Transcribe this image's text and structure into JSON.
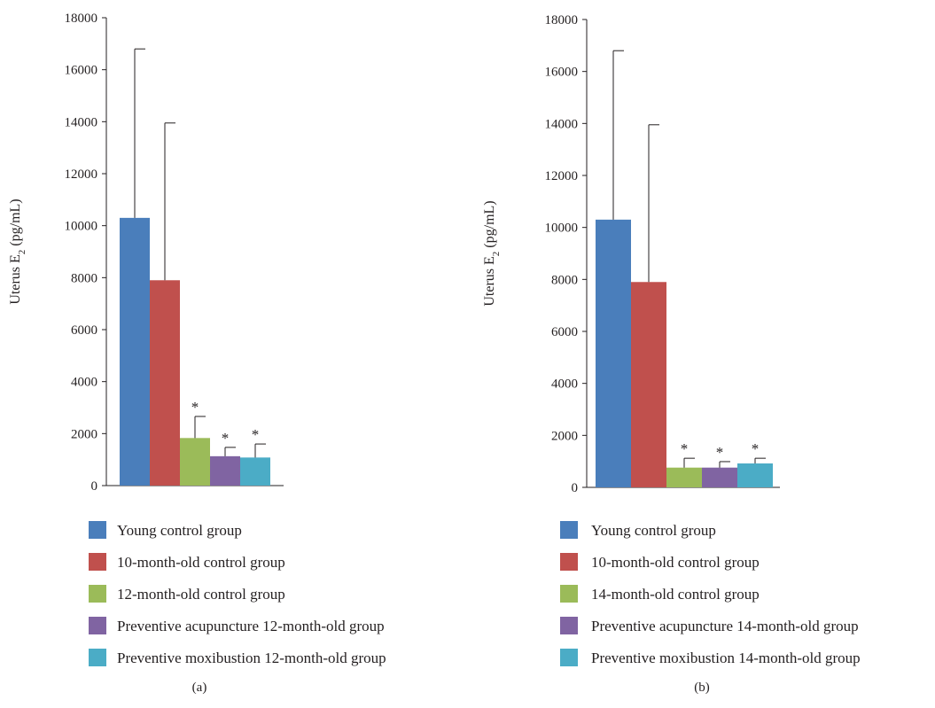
{
  "chart_data": [
    {
      "type": "bar",
      "panel_label": "(a)",
      "ylabel_text": "Uterus E",
      "ylabel_sub": "2",
      "ylabel_unit": " (pg/mL)",
      "ylim": [
        0,
        18000
      ],
      "yticks": [
        0,
        2000,
        4000,
        6000,
        8000,
        10000,
        12000,
        14000,
        16000,
        18000
      ],
      "series": [
        {
          "name": "Young control group",
          "value": 10300,
          "error": 6500,
          "color": "#4a7ebb",
          "marker": ""
        },
        {
          "name": "10-month-old control group",
          "value": 7900,
          "error": 6050,
          "color": "#c0504d",
          "marker": ""
        },
        {
          "name": "12-month-old control group",
          "value": 1830,
          "error": 830,
          "color": "#9bbb59",
          "marker": "*"
        },
        {
          "name": "Preventive acupuncture 12-month-old group",
          "value": 1130,
          "error": 340,
          "color": "#8064a2",
          "marker": "*"
        },
        {
          "name": "Preventive moxibustion 12-month-old group",
          "value": 1080,
          "error": 520,
          "color": "#4bacc6",
          "marker": "*"
        }
      ]
    },
    {
      "type": "bar",
      "panel_label": "(b)",
      "ylabel_text": "Uterus E",
      "ylabel_sub": "2",
      "ylabel_unit": " (pg/mL)",
      "ylim": [
        0,
        18000
      ],
      "yticks": [
        0,
        2000,
        4000,
        6000,
        8000,
        10000,
        12000,
        14000,
        16000,
        18000
      ],
      "series": [
        {
          "name": "Young control group",
          "value": 10300,
          "error": 6500,
          "color": "#4a7ebb",
          "marker": ""
        },
        {
          "name": "10-month-old control group",
          "value": 7900,
          "error": 6050,
          "color": "#c0504d",
          "marker": ""
        },
        {
          "name": "14-month-old control group",
          "value": 760,
          "error": 360,
          "color": "#9bbb59",
          "marker": "*"
        },
        {
          "name": "Preventive acupuncture 14-month-old group",
          "value": 760,
          "error": 230,
          "color": "#8064a2",
          "marker": "*"
        },
        {
          "name": "Preventive moxibustion 14-month-old group",
          "value": 920,
          "error": 200,
          "color": "#4bacc6",
          "marker": "*"
        }
      ]
    }
  ]
}
